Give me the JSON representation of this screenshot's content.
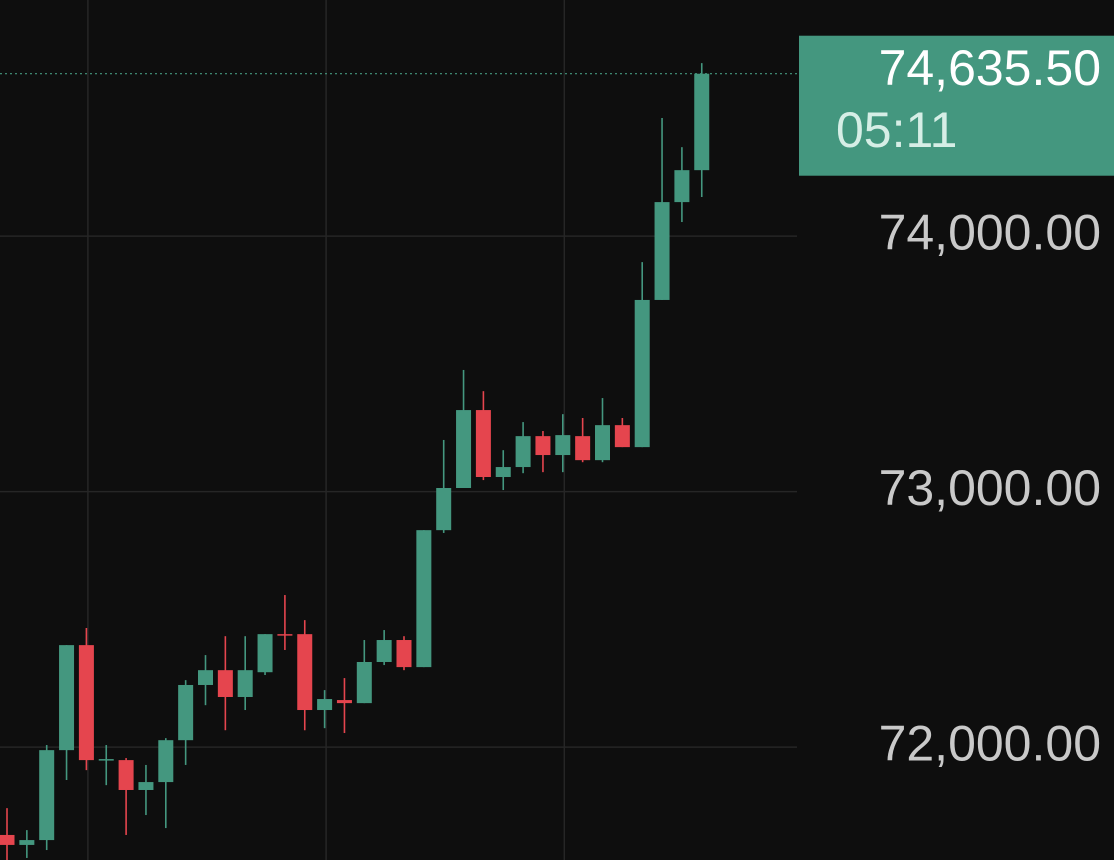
{
  "chart_data": {
    "type": "candlestick",
    "up_color": "#44977f",
    "down_color": "#e5454e",
    "open": [
      71656,
      71617,
      71636,
      71988,
      72399,
      71949,
      71949,
      71832,
      71863,
      72027,
      72243,
      72301,
      72196,
      72293,
      72442,
      72442,
      72145,
      72184,
      72172,
      72333,
      72419,
      72313,
      72849,
      73014,
      73319,
      73057,
      73096,
      73217,
      73143,
      73217,
      73123,
      73260,
      73174,
      73750,
      74133,
      74258
    ],
    "high": [
      71761,
      71675,
      72008,
      72399,
      72466,
      72008,
      71957,
      71930,
      72035,
      72262,
      72360,
      72434,
      72434,
      72442,
      72595,
      72497,
      72223,
      72270,
      72419,
      72458,
      72434,
      72849,
      73202,
      73476,
      73393,
      73162,
      73272,
      73237,
      73303,
      73288,
      73366,
      73288,
      73898,
      74462,
      74348,
      74677
    ],
    "low": [
      71558,
      71566,
      71597,
      71871,
      71910,
      71851,
      71656,
      71734,
      71683,
      71930,
      72164,
      72066,
      72145,
      72282,
      72380,
      72066,
      72074,
      72055,
      72172,
      72321,
      72301,
      72313,
      72838,
      73014,
      73045,
      73006,
      73072,
      73076,
      73076,
      73115,
      73115,
      73174,
      73174,
      73750,
      74055,
      74153
    ],
    "close": [
      71617,
      71636,
      71988,
      72399,
      71949,
      71953,
      71832,
      71863,
      72027,
      72243,
      72301,
      72196,
      72301,
      72442,
      72438,
      72145,
      72188,
      72172,
      72333,
      72419,
      72313,
      72849,
      73014,
      73319,
      73057,
      73096,
      73217,
      73143,
      73221,
      73123,
      73260,
      73174,
      73750,
      74133,
      74258,
      74635.5
    ],
    "ylim": [
      71558,
      74924
    ],
    "yticks": [
      {
        "value": 72000,
        "label": "72,000.00"
      },
      {
        "value": 73000,
        "label": "73,000.00"
      },
      {
        "value": 74000,
        "label": "74,000.00"
      }
    ],
    "grid": true,
    "last_price": {
      "value": 74635.5,
      "label": "74,635.50"
    },
    "countdown": "05:11"
  }
}
